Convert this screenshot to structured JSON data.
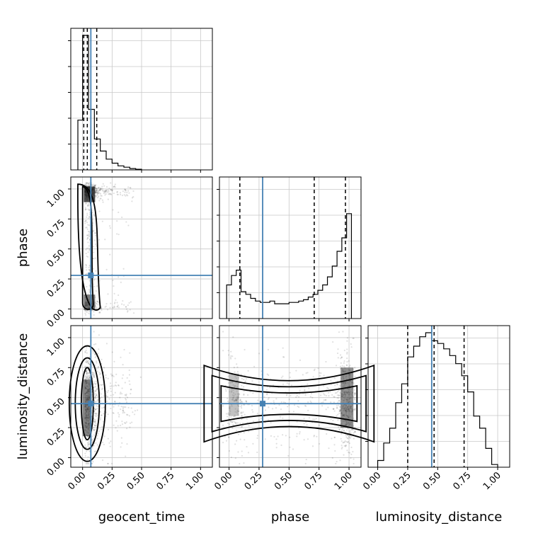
{
  "chart_data": {
    "type": "corner",
    "parameters": [
      "geocent_time",
      "phase",
      "luminosity_distance"
    ],
    "axis_labels": {
      "x": [
        "geocent_time",
        "phase",
        "luminosity_distance"
      ],
      "y": [
        "phase",
        "luminosity_distance"
      ]
    },
    "ranges": {
      "geocent_time": [
        -0.1,
        1.1
      ],
      "phase": [
        -0.08,
        1.1
      ],
      "luminosity_distance": [
        -0.08,
        1.1
      ]
    },
    "ticks": [
      0.0,
      0.25,
      0.5,
      0.75,
      1.0
    ],
    "tick_labels": [
      "0.00",
      "0.25",
      "0.50",
      "0.75",
      "1.00"
    ],
    "truths": {
      "geocent_time": 0.07,
      "phase": 0.28,
      "luminosity_distance": 0.45
    },
    "quantiles": {
      "geocent_time": [
        0.01,
        0.04,
        0.12
      ],
      "phase": [
        0.09,
        0.71,
        0.97
      ],
      "luminosity_distance": [
        0.25,
        0.47,
        0.72
      ]
    },
    "histograms": {
      "geocent_time": {
        "edges": [
          -0.04,
          0.0,
          0.05,
          0.1,
          0.15,
          0.2,
          0.25,
          0.3,
          0.35,
          0.4,
          0.45,
          0.5
        ],
        "heights": [
          0.37,
          1.0,
          0.45,
          0.23,
          0.14,
          0.08,
          0.05,
          0.03,
          0.02,
          0.01,
          0.005
        ]
      },
      "phase": {
        "edges": [
          -0.02,
          0.02,
          0.06,
          0.1,
          0.14,
          0.18,
          0.22,
          0.26,
          0.3,
          0.34,
          0.38,
          0.42,
          0.46,
          0.5,
          0.54,
          0.58,
          0.62,
          0.66,
          0.7,
          0.74,
          0.78,
          0.82,
          0.86,
          0.9,
          0.94,
          0.98,
          1.02
        ],
        "heights": [
          0.25,
          0.32,
          0.36,
          0.2,
          0.18,
          0.15,
          0.13,
          0.12,
          0.12,
          0.13,
          0.11,
          0.11,
          0.11,
          0.12,
          0.12,
          0.13,
          0.14,
          0.16,
          0.18,
          0.21,
          0.25,
          0.31,
          0.39,
          0.5,
          0.6,
          0.78
        ]
      },
      "luminosity_distance": {
        "edges": [
          0.0,
          0.05,
          0.1,
          0.15,
          0.2,
          0.25,
          0.3,
          0.35,
          0.4,
          0.45,
          0.5,
          0.55,
          0.6,
          0.65,
          0.7,
          0.75,
          0.8,
          0.85,
          0.9,
          0.95,
          1.0
        ],
        "heights": [
          0.05,
          0.18,
          0.29,
          0.48,
          0.62,
          0.82,
          0.9,
          0.97,
          1.0,
          0.94,
          0.92,
          0.88,
          0.83,
          0.77,
          0.68,
          0.56,
          0.38,
          0.29,
          0.14,
          0.02
        ]
      }
    },
    "grid": true
  }
}
